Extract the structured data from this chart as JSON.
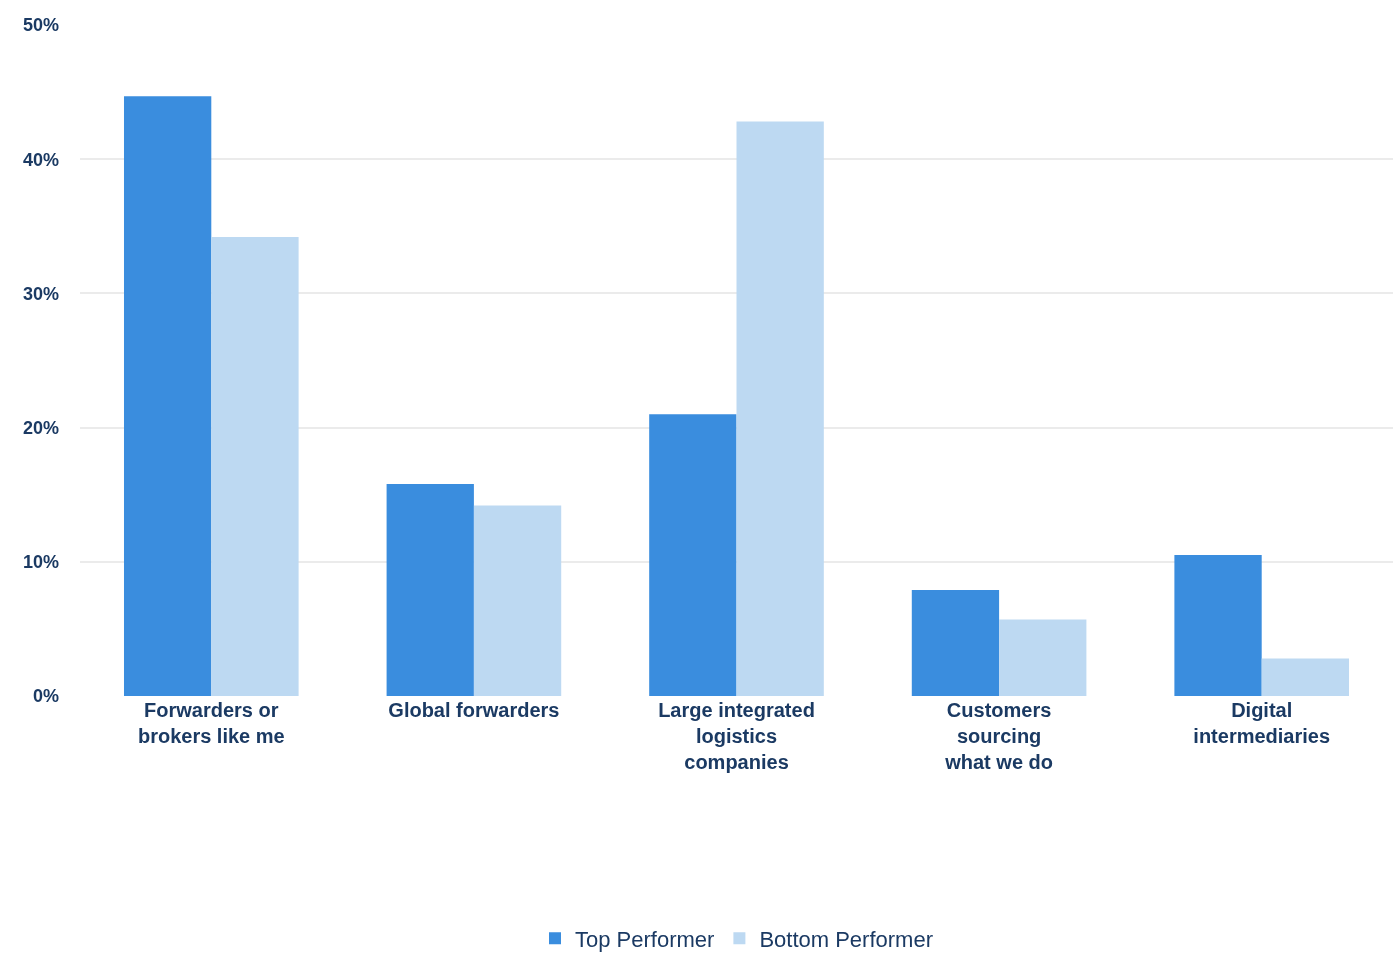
{
  "chart_data": {
    "type": "bar",
    "categories": [
      "Forwarders or\nbrokers like me",
      "Global forwarders",
      "Large integrated\nlogistics\ncompanies",
      "Customers\nsourcing\nwhat we do",
      "Digital\nintermediaries"
    ],
    "series": [
      {
        "name": "Top Performer",
        "color": "#3a8dde",
        "values": [
          44.7,
          15.8,
          21,
          7.9,
          10.5
        ]
      },
      {
        "name": "Bottom Performer",
        "color": "#bdd9f2",
        "values": [
          34.2,
          14.2,
          42.8,
          5.7,
          2.8
        ]
      }
    ],
    "ylim": [
      0,
      50
    ],
    "yticks": [
      {
        "value": 0,
        "label": "0%"
      },
      {
        "value": 10,
        "label": "10%"
      },
      {
        "value": 20,
        "label": "20%"
      },
      {
        "value": 30,
        "label": "30%"
      },
      {
        "value": 40,
        "label": "40%"
      },
      {
        "value": 50,
        "label": "50%"
      }
    ],
    "grid": "y",
    "legend": "bottom"
  }
}
